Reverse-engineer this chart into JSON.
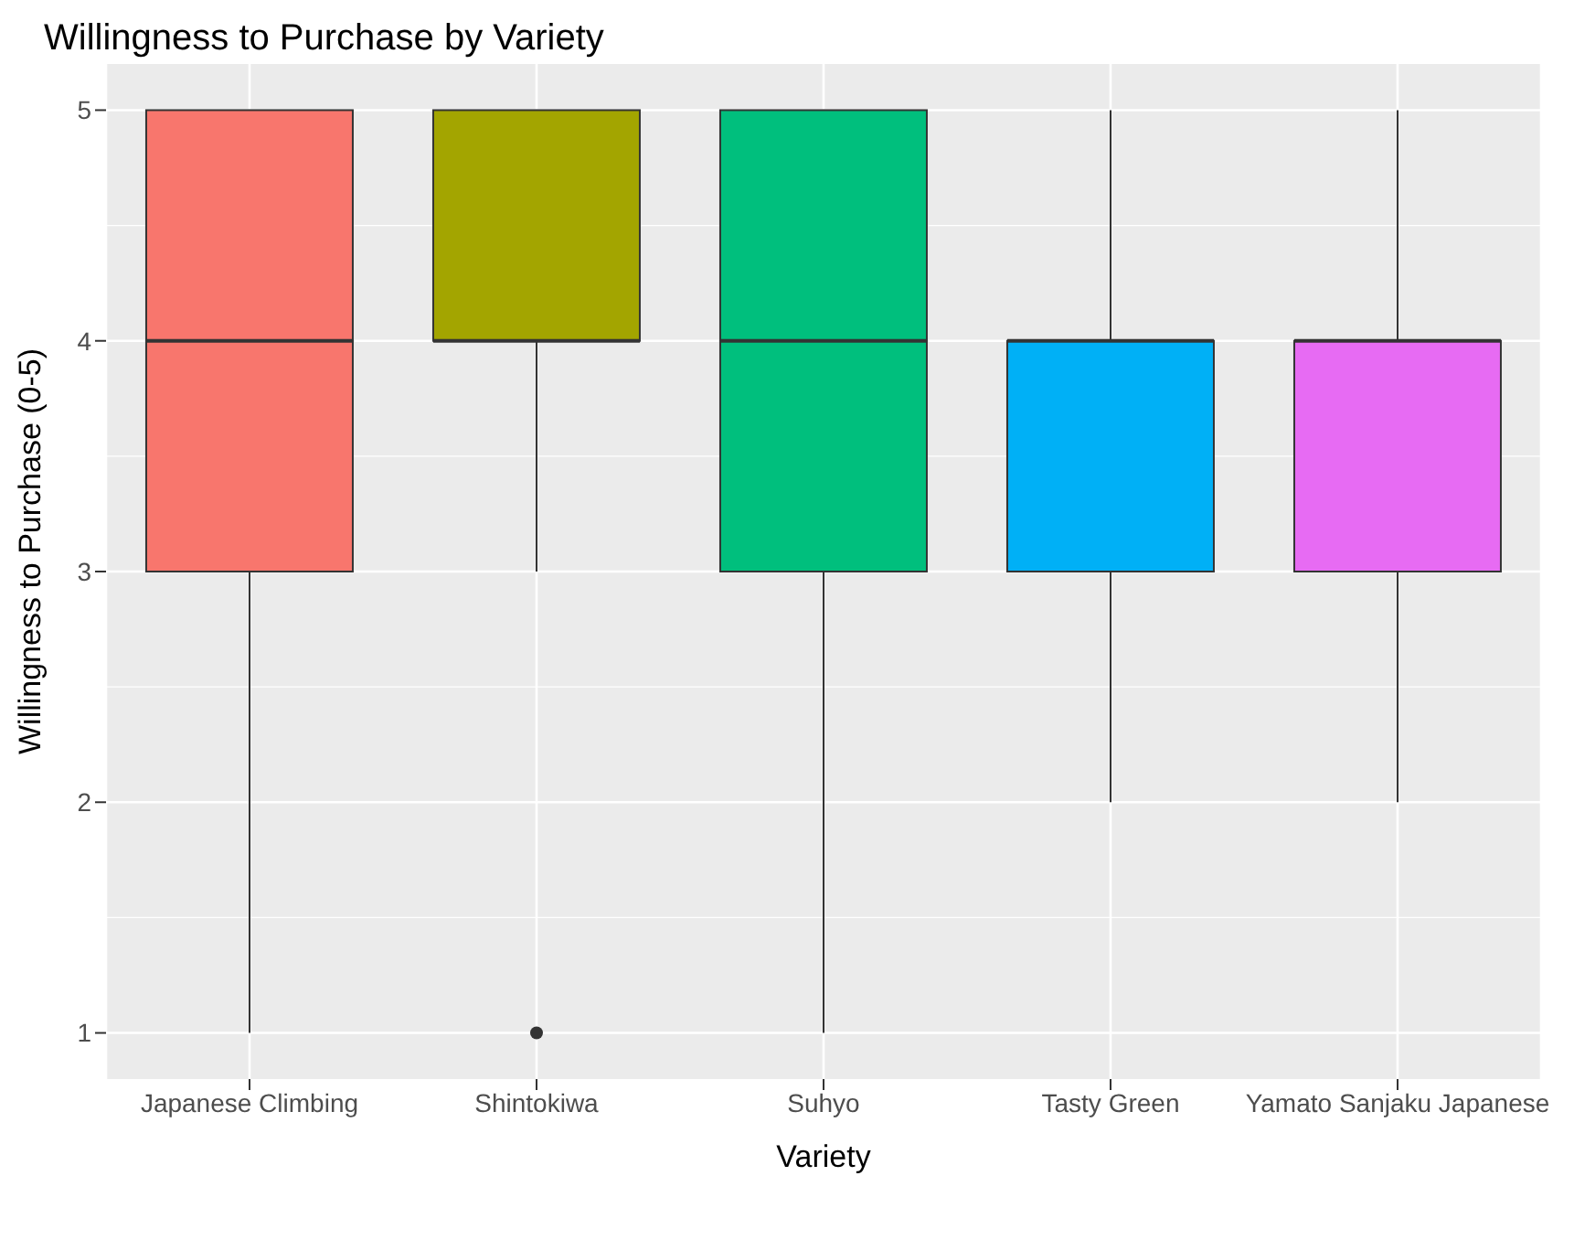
{
  "chart_data": {
    "type": "box",
    "title": "Willingness to Purchase by Variety",
    "xlabel": "Variety",
    "ylabel": "Willingness to Purchase (0-5)",
    "categories": [
      "Japanese Climbing",
      "Shintokiwa",
      "Suhyo",
      "Tasty Green",
      "Yamato Sanjaku Japanese"
    ],
    "colors": [
      "#f8766d",
      "#a3a500",
      "#00bf7d",
      "#00b0f6",
      "#e76bf3"
    ],
    "boxes": [
      {
        "low": 1,
        "q1": 3,
        "median": 4,
        "q3": 5,
        "high": 5
      },
      {
        "low": 3,
        "q1": 4,
        "median": 4,
        "q3": 5,
        "high": 5,
        "outliers": [
          1
        ]
      },
      {
        "low": 1,
        "q1": 3,
        "median": 4,
        "q3": 5,
        "high": 5
      },
      {
        "low": 2,
        "q1": 3,
        "median": 4,
        "q3": 4,
        "high": 5
      },
      {
        "low": 2,
        "q1": 3,
        "median": 4,
        "q3": 4,
        "high": 5
      }
    ],
    "ylim": [
      0.8,
      5.2
    ],
    "yticks": [
      1,
      2,
      3,
      4,
      5
    ],
    "grid": true,
    "legend": false
  }
}
